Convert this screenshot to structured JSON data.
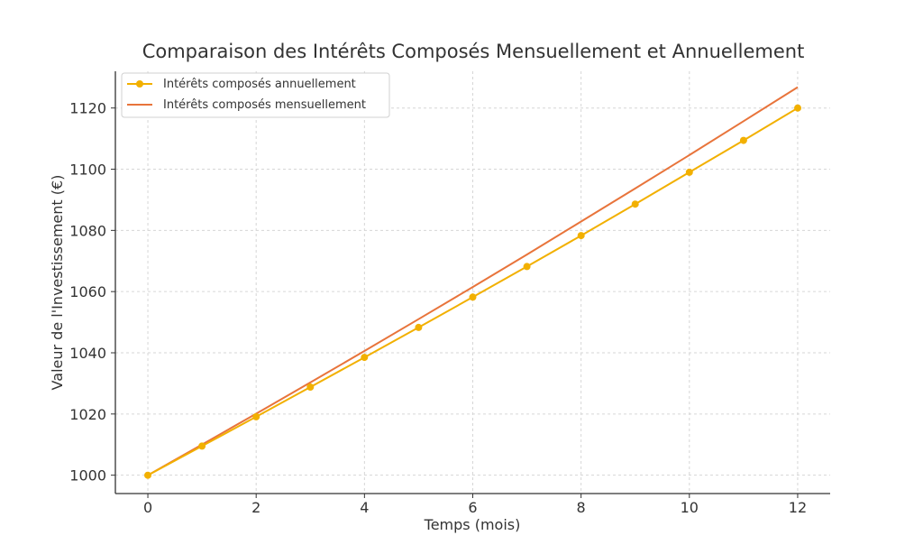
{
  "chart_data": {
    "type": "line",
    "title": "Comparaison des Intérêts Composés Mensuellement et Annuellement",
    "xlabel": "Temps (mois)",
    "ylabel": "Valeur de l'Investissement (€)",
    "xlim": [
      -0.6,
      12.6
    ],
    "ylim": [
      994,
      1132
    ],
    "xticks": [
      0,
      2,
      4,
      6,
      8,
      10,
      12
    ],
    "yticks": [
      1000,
      1020,
      1040,
      1060,
      1080,
      1100,
      1120
    ],
    "grid": true,
    "legend_position": "top-left",
    "x": [
      0,
      1,
      2,
      3,
      4,
      5,
      6,
      7,
      8,
      9,
      10,
      11,
      12
    ],
    "series": [
      {
        "name": "Intérêts composés annuellement",
        "color": "#f2b000",
        "marker": "circle",
        "values": [
          1000,
          1009.5,
          1019.1,
          1028.8,
          1038.5,
          1048.3,
          1058.2,
          1068.2,
          1078.3,
          1088.6,
          1099.0,
          1109.4,
          1120.0
        ]
      },
      {
        "name": "Intérêts composés mensuellement",
        "color": "#e8743b",
        "marker": "none",
        "values": [
          1000,
          1010.0,
          1020.1,
          1030.3,
          1040.6,
          1051.0,
          1061.5,
          1072.1,
          1082.9,
          1093.7,
          1104.6,
          1115.7,
          1126.8
        ]
      }
    ]
  }
}
